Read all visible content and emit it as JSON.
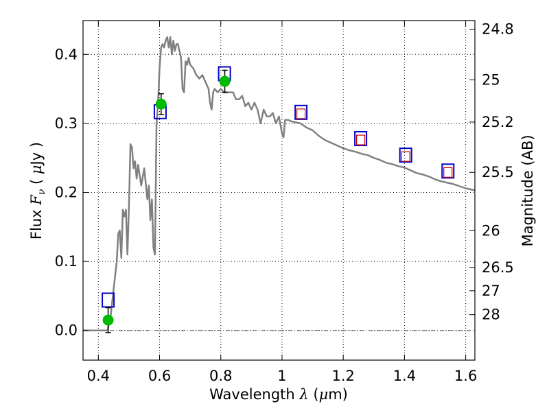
{
  "chart_data": {
    "type": "line",
    "xlabel_pre": "Wavelength  ",
    "xlabel_sym": "λ",
    "xlabel_unit_open": " (",
    "xlabel_unit_mu": "μ",
    "xlabel_unit_rest": "m)",
    "ylabel_pre": "Flux  ",
    "ylabel_sym": "F",
    "ylabel_sub": "ν",
    "ylabel_unit_open": "  ( ",
    "ylabel_unit_mu": "μ",
    "ylabel_unit_rest": "Jy )",
    "y2label": "Magnitude (AB)",
    "xlim": [
      0.35,
      1.63
    ],
    "ylim": [
      -0.043,
      0.449
    ],
    "grid": true,
    "x_ticks": [
      0.4,
      0.6,
      0.8,
      1.0,
      1.2,
      1.4,
      1.6
    ],
    "x_tick_labels": [
      "0.4",
      "0.6",
      "0.8",
      "1",
      "1.2",
      "1.4",
      "1.6"
    ],
    "y_ticks": [
      0.0,
      0.1,
      0.2,
      0.3,
      0.4
    ],
    "y_tick_labels": [
      "0.0",
      "0.1",
      "0.2",
      "0.3",
      "0.4"
    ],
    "y2_ticks": [
      {
        "label": "24.8",
        "flux": 0.4365
      },
      {
        "label": "25",
        "flux": 0.3631
      },
      {
        "label": "25.2",
        "flux": 0.302
      },
      {
        "label": "25.5",
        "flux": 0.2291
      },
      {
        "label": "26",
        "flux": 0.1445
      },
      {
        "label": "26.5",
        "flux": 0.0912
      },
      {
        "label": "27",
        "flux": 0.0575
      },
      {
        "label": "28",
        "flux": 0.0229
      }
    ],
    "series": [
      {
        "color": "#808080",
        "x": [
          0.35,
          0.43,
          0.44,
          0.45,
          0.46,
          0.465,
          0.47,
          0.475,
          0.48,
          0.485,
          0.49,
          0.495,
          0.5,
          0.505,
          0.51,
          0.515,
          0.52,
          0.525,
          0.53,
          0.54,
          0.55,
          0.56,
          0.565,
          0.57,
          0.575,
          0.58,
          0.585,
          0.59,
          0.595,
          0.6,
          0.605,
          0.61,
          0.615,
          0.62,
          0.625,
          0.63,
          0.635,
          0.64,
          0.645,
          0.65,
          0.655,
          0.66,
          0.665,
          0.67,
          0.675,
          0.68,
          0.685,
          0.69,
          0.695,
          0.7,
          0.71,
          0.72,
          0.73,
          0.74,
          0.75,
          0.76,
          0.765,
          0.77,
          0.775,
          0.78,
          0.79,
          0.8,
          0.81,
          0.82,
          0.83,
          0.84,
          0.85,
          0.86,
          0.87,
          0.88,
          0.89,
          0.9,
          0.91,
          0.92,
          0.93,
          0.94,
          0.95,
          0.96,
          0.97,
          0.98,
          0.99,
          1.0,
          1.005,
          1.01,
          1.02,
          1.03,
          1.04,
          1.06,
          1.08,
          1.1,
          1.12,
          1.14,
          1.16,
          1.18,
          1.2,
          1.22,
          1.24,
          1.26,
          1.28,
          1.3,
          1.32,
          1.34,
          1.36,
          1.38,
          1.4,
          1.42,
          1.44,
          1.46,
          1.48,
          1.5,
          1.52,
          1.54,
          1.56,
          1.58,
          1.6,
          1.63
        ],
        "y": [
          0.0,
          0.0,
          0.02,
          0.06,
          0.1,
          0.14,
          0.145,
          0.105,
          0.175,
          0.165,
          0.175,
          0.11,
          0.18,
          0.27,
          0.265,
          0.235,
          0.245,
          0.22,
          0.24,
          0.21,
          0.235,
          0.19,
          0.21,
          0.16,
          0.19,
          0.12,
          0.11,
          0.3,
          0.33,
          0.38,
          0.41,
          0.415,
          0.41,
          0.42,
          0.425,
          0.41,
          0.425,
          0.4,
          0.42,
          0.405,
          0.415,
          0.415,
          0.405,
          0.395,
          0.35,
          0.345,
          0.39,
          0.385,
          0.395,
          0.385,
          0.38,
          0.37,
          0.365,
          0.37,
          0.36,
          0.35,
          0.33,
          0.32,
          0.345,
          0.35,
          0.345,
          0.35,
          0.345,
          0.345,
          0.345,
          0.345,
          0.335,
          0.335,
          0.34,
          0.325,
          0.33,
          0.32,
          0.33,
          0.32,
          0.3,
          0.32,
          0.31,
          0.31,
          0.315,
          0.3,
          0.31,
          0.285,
          0.28,
          0.305,
          0.305,
          0.303,
          0.302,
          0.3,
          0.294,
          0.29,
          0.282,
          0.276,
          0.272,
          0.268,
          0.264,
          0.261,
          0.259,
          0.256,
          0.254,
          0.25,
          0.247,
          0.243,
          0.241,
          0.238,
          0.236,
          0.232,
          0.228,
          0.226,
          0.223,
          0.219,
          0.216,
          0.214,
          0.212,
          0.209,
          0.206,
          0.203
        ]
      }
    ],
    "model_points": {
      "color": "#0000cc",
      "marker": "square",
      "x": [
        0.432,
        0.602,
        0.812,
        1.062,
        1.257,
        1.404,
        1.542
      ],
      "y": [
        0.044,
        0.317,
        0.372,
        0.316,
        0.278,
        0.254,
        0.231
      ]
    },
    "nir_points": {
      "color": "#cc0000",
      "marker": "square",
      "x": [
        1.062,
        1.257,
        1.404,
        1.542
      ],
      "y": [
        0.314,
        0.276,
        0.252,
        0.229
      ]
    },
    "observed_points": {
      "color": "#00bb00",
      "marker": "circle",
      "x": [
        0.432,
        0.605,
        0.813
      ],
      "y": [
        0.015,
        0.328,
        0.361
      ],
      "yerr": [
        0.018,
        0.015,
        0.016
      ]
    }
  }
}
